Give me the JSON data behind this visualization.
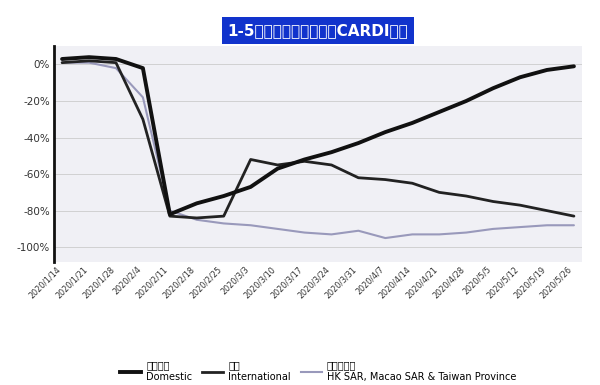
{
  "title": "1-5月中国不同航线市圼CARDI分析",
  "title_bg": "#1133cc",
  "title_color": "#ffffff",
  "bg_color": "#ffffff",
  "plot_bg": "#f5f5f8",
  "ylim": [
    -108,
    10
  ],
  "yticks": [
    0,
    -20,
    -40,
    -60,
    -80,
    -100
  ],
  "ytick_labels": [
    "0%",
    "-20%",
    "-40%",
    "-60%",
    "-80%",
    "-100%"
  ],
  "x_dates": [
    "2020/1/14",
    "2020/1/21",
    "2020/1/28",
    "2020/2/4",
    "2020/2/11",
    "2020/2/18",
    "2020/2/25",
    "2020/3/3",
    "2020/3/10",
    "2020/3/17",
    "2020/3/24",
    "2020/3/31",
    "2020/4/7",
    "2020/4/14",
    "2020/4/21",
    "2020/4/28",
    "2020/5/5",
    "2020/5/12",
    "2020/5/19",
    "2020/5/26"
  ],
  "domestic_y": [
    3,
    4,
    3,
    -2,
    -82,
    -76,
    -72,
    -67,
    -57,
    -52,
    -48,
    -43,
    -37,
    -32,
    -26,
    -20,
    -13,
    -7,
    -3,
    -1
  ],
  "international_y": [
    1,
    2,
    1,
    -30,
    -83,
    -84,
    -83,
    -52,
    -55,
    -53,
    -55,
    -62,
    -63,
    -65,
    -70,
    -72,
    -75,
    -77,
    -80,
    -83
  ],
  "hk_y": [
    1,
    1,
    -2,
    -18,
    -80,
    -85,
    -87,
    -88,
    -90,
    -92,
    -93,
    -91,
    -95,
    -93,
    -93,
    -92,
    -90,
    -89,
    -88,
    -88
  ],
  "domestic_color": "#111111",
  "international_color": "#222222",
  "hk_color": "#9999bb",
  "domestic_lw": 2.8,
  "international_lw": 2.0,
  "hk_lw": 1.5,
  "legend_domestic_cn": "中国内地",
  "legend_domestic_en": "Domestic",
  "legend_intl_cn": "国际",
  "legend_intl_en": "International",
  "legend_hk_cn": "港澳台地区",
  "legend_hk_en": "HK SAR, Macao SAR & Taiwan Province"
}
